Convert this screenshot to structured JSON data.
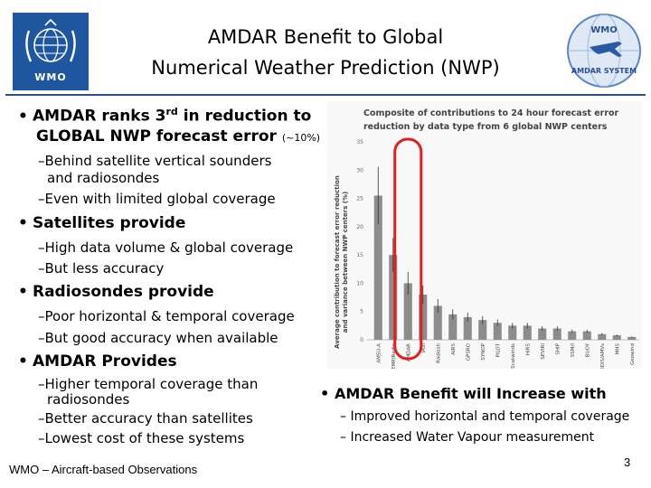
{
  "logo_left": {
    "text": "WMO"
  },
  "title": {
    "line1": "AMDAR Benefit to Global",
    "line2": "Numerical Weather Prediction (NWP)"
  },
  "bullets": [
    {
      "text_main": "AMDAR ranks 3",
      "text_sup": "rd",
      "text_after": " in reduction to",
      "line2_main": "GLOBAL NWP forecast error",
      "line2_small": "(~10%)"
    },
    {
      "sub1a": "Behind satellite vertical sounders",
      "sub1b": "and radiosondes",
      "sub2": "Even with limited global coverage"
    },
    {
      "text": "Satellites provide",
      "sub1": "High data volume & global coverage",
      "sub2": "But less accuracy"
    },
    {
      "text": "Radiosondes provide",
      "sub1": "Poor horizontal & temporal coverage",
      "sub2": "But good accuracy when available"
    },
    {
      "text": "AMDAR Provides",
      "sub1a": "Higher temporal coverage than",
      "sub1b": "radiosondes",
      "sub2": "Better accuracy than satellites",
      "sub3": "Lowest cost of these systems"
    }
  ],
  "benefit": {
    "text": "AMDAR Benefit will Increase with",
    "sub1": "Improved horizontal and temporal coverage",
    "sub2": "Increased Water Vapour measurement"
  },
  "footer": "WMO – Aircraft-based Observations",
  "page_number": "3",
  "colors": {
    "highlight": "#e02020",
    "bar": "#8c8c8c",
    "rule": "#2b4f8a",
    "logo": "#1e56a0"
  },
  "chart_data": {
    "type": "bar",
    "title_line1": "Composite of contributions to 24 hour forecast error",
    "title_line2": "reduction by data type from 6 global NWP centers",
    "ylabel_line1": "Average contribution to forecast error reduction",
    "ylabel_line2": "and variance between NWP centers (%)",
    "categories": [
      "AMSU-A",
      "TEMP/Radio",
      "AMDAR",
      "IASI",
      "Radiosh",
      "AIRS",
      "GPSRO",
      "SYNOP",
      "PILOT",
      "Scatwinds",
      "HIRS",
      "SEVIRI",
      "SHIP",
      "SSM/I",
      "BUOY",
      "MODIS/AMVs",
      "MHS",
      "Geowind"
    ],
    "values": [
      25.5,
      15,
      10,
      8,
      6,
      4.5,
      4,
      3.5,
      3,
      2.5,
      2.5,
      2,
      2,
      1.5,
      1.5,
      1,
      0.8,
      0.5
    ],
    "yticks": [
      "0",
      "5",
      "10",
      "15",
      "20",
      "25",
      "30",
      "35"
    ],
    "ylim": [
      0,
      35
    ],
    "highlight_category": "AMDAR"
  },
  "logo_right": {
    "text_top": "WMO",
    "text_bottom": "AMDAR SYSTEM"
  }
}
